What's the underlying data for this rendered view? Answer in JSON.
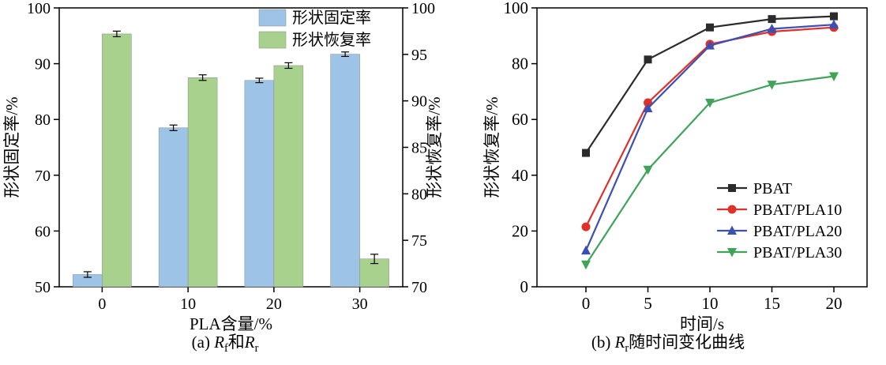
{
  "figure": {
    "background": "#ffffff",
    "frame_color": "#000000"
  },
  "chart_data": [
    {
      "type": "bar",
      "panel": "a",
      "title": "",
      "xlabel": "PLA含量/%",
      "ylabel_left": "形状固定率/%",
      "ylabel_right": "形状恢复率/%",
      "categories": [
        "0",
        "10",
        "20",
        "30"
      ],
      "ylim_left": [
        50,
        100
      ],
      "yticks_left": [
        50,
        60,
        70,
        80,
        90,
        100
      ],
      "ylim_right": [
        70,
        100
      ],
      "yticks_right": [
        70,
        75,
        80,
        85,
        90,
        95,
        100
      ],
      "grid": false,
      "legend_position": "top-center-inside",
      "series": [
        {
          "name": "形状固定率",
          "axis": "left",
          "color": "#9dc3e6",
          "values": [
            52.2,
            78.5,
            87.0,
            91.7
          ],
          "errors": [
            0.5,
            0.5,
            0.4,
            0.4
          ]
        },
        {
          "name": "形状恢复率",
          "axis": "right",
          "color": "#a9d18e",
          "values": [
            97.2,
            92.5,
            93.8,
            73.0
          ],
          "errors": [
            0.3,
            0.3,
            0.3,
            0.5
          ]
        }
      ]
    },
    {
      "type": "line",
      "panel": "b",
      "title": "",
      "xlabel": "时间/s",
      "ylabel": "形状恢复率/%",
      "x": [
        0,
        5,
        10,
        15,
        20
      ],
      "xlim": [
        0,
        20
      ],
      "xticks": [
        0,
        5,
        10,
        15,
        20
      ],
      "ylim": [
        0,
        100
      ],
      "yticks": [
        0,
        20,
        40,
        60,
        80,
        100
      ],
      "grid": false,
      "legend_position": "right-center-inside",
      "series": [
        {
          "name": "PBAT",
          "color": "#2b2b2b",
          "marker": "square",
          "values": [
            48,
            81.5,
            93,
            96,
            97
          ]
        },
        {
          "name": "PBAT/PLA10",
          "color": "#e03028",
          "marker": "circle",
          "values": [
            21.5,
            66,
            87,
            91.5,
            93
          ]
        },
        {
          "name": "PBAT/PLA20",
          "color": "#3a50b5",
          "marker": "triangle-up",
          "values": [
            13,
            64,
            86.5,
            92.5,
            94
          ]
        },
        {
          "name": "PBAT/PLA30",
          "color": "#3fa45a",
          "marker": "triangle-down",
          "values": [
            8,
            42,
            66,
            72.5,
            75.5
          ]
        }
      ]
    }
  ],
  "captions": {
    "a": {
      "prefix": "(a) ",
      "var1": "R",
      "sub1": "f",
      "joiner": "和",
      "var2": "R",
      "sub2": "r"
    },
    "b": {
      "prefix": "(b) ",
      "var1": "R",
      "sub1": "r",
      "suffix": "随时间变化曲线"
    }
  }
}
